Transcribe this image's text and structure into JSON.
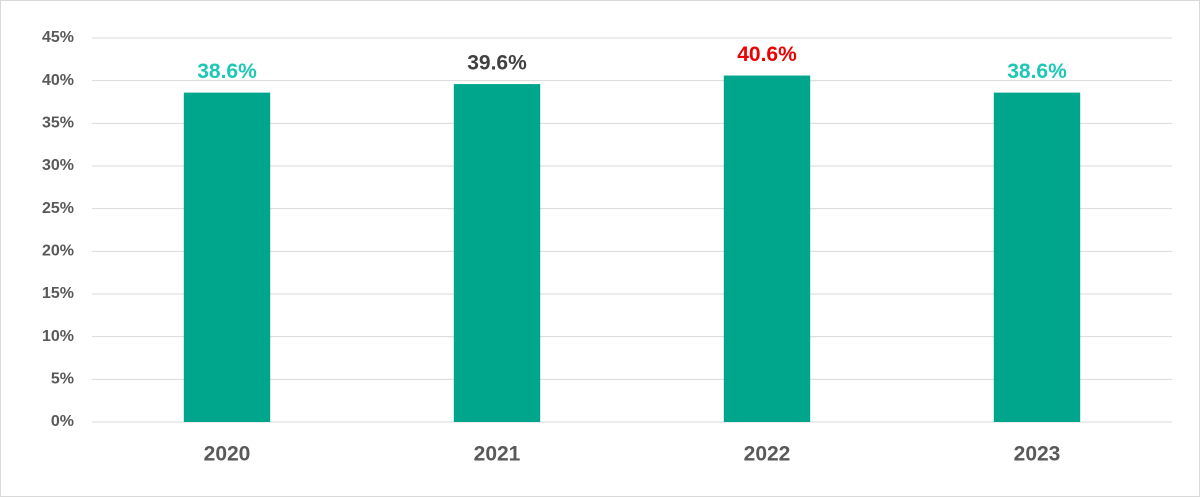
{
  "chart_data": {
    "type": "bar",
    "categories": [
      "2020",
      "2021",
      "2022",
      "2023"
    ],
    "values": [
      38.6,
      39.6,
      40.6,
      38.6
    ],
    "value_labels": [
      "38.6%",
      "39.6%",
      "40.6%",
      "38.6%"
    ],
    "value_label_colors": [
      "#1fc7b6",
      "#404040",
      "#ee0000",
      "#1fc7b6"
    ],
    "color": "#00a68c",
    "ylim": [
      0,
      45
    ],
    "yticks": [
      {
        "value": 0,
        "label": "0%"
      },
      {
        "value": 5,
        "label": "5%"
      },
      {
        "value": 10,
        "label": "10%"
      },
      {
        "value": 15,
        "label": "15%"
      },
      {
        "value": 20,
        "label": "20%"
      },
      {
        "value": 25,
        "label": "25%"
      },
      {
        "value": 30,
        "label": "30%"
      },
      {
        "value": 35,
        "label": "35%"
      },
      {
        "value": 40,
        "label": "40%"
      },
      {
        "value": 45,
        "label": "45%"
      }
    ],
    "grid": true
  }
}
